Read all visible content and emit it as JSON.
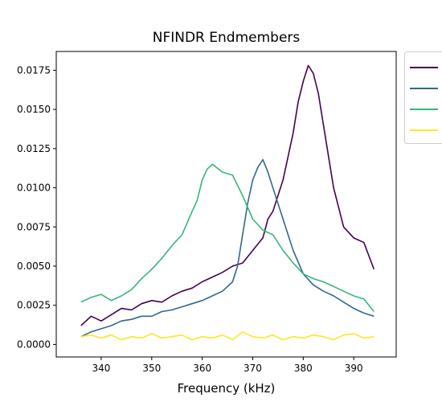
{
  "chart_data": {
    "type": "line",
    "title": "NFINDR Endmembers",
    "xlabel": "Frequency (kHz)",
    "ylabel": "",
    "xlim": [
      331.1,
      398.4
    ],
    "ylim": [
      -0.0008,
      0.0187
    ],
    "xticks": [
      340,
      350,
      360,
      370,
      380,
      390
    ],
    "yticks": [
      0.0,
      0.0025,
      0.005,
      0.0075,
      0.01,
      0.0125,
      0.015,
      0.0175
    ],
    "ytick_labels": [
      "0.0000",
      "0.0025",
      "0.0050",
      "0.0075",
      "0.0100",
      "0.0125",
      "0.0150",
      "0.0175"
    ],
    "grid": false,
    "legend": {
      "placement": "outside-right",
      "entries": 4
    },
    "series": [
      {
        "color": "#440154",
        "x": [
          336,
          338,
          340,
          342,
          344,
          346,
          348,
          350,
          352,
          354,
          356,
          358,
          360,
          362,
          364,
          366,
          368,
          370,
          372,
          373,
          374,
          376,
          378,
          379,
          380,
          381,
          382,
          383,
          384,
          386,
          388,
          390,
          392,
          394
        ],
        "y": [
          0.0012,
          0.0018,
          0.0015,
          0.0019,
          0.0023,
          0.0022,
          0.0026,
          0.0028,
          0.0027,
          0.0031,
          0.0034,
          0.0036,
          0.004,
          0.0043,
          0.0046,
          0.005,
          0.0052,
          0.006,
          0.0068,
          0.008,
          0.0085,
          0.0105,
          0.0135,
          0.0155,
          0.0168,
          0.0178,
          0.0173,
          0.016,
          0.014,
          0.01,
          0.0075,
          0.0068,
          0.0065,
          0.0048
        ]
      },
      {
        "color": "#31688e",
        "x": [
          336,
          338,
          340,
          342,
          344,
          346,
          348,
          350,
          352,
          354,
          356,
          358,
          360,
          362,
          364,
          366,
          367,
          368,
          369,
          370,
          371,
          372,
          373,
          374,
          376,
          378,
          380,
          382,
          384,
          386,
          388,
          390,
          392,
          394
        ],
        "y": [
          0.0005,
          0.0008,
          0.001,
          0.0012,
          0.0015,
          0.0016,
          0.0018,
          0.0018,
          0.0021,
          0.0022,
          0.0024,
          0.0026,
          0.0028,
          0.0031,
          0.0034,
          0.004,
          0.005,
          0.007,
          0.009,
          0.0105,
          0.0113,
          0.0118,
          0.011,
          0.01,
          0.008,
          0.006,
          0.0045,
          0.0038,
          0.0034,
          0.0031,
          0.0027,
          0.0023,
          0.002,
          0.0018
        ]
      },
      {
        "color": "#35b779",
        "x": [
          336,
          338,
          340,
          342,
          344,
          346,
          348,
          350,
          352,
          354,
          356,
          358,
          359,
          360,
          361,
          362,
          364,
          366,
          368,
          370,
          372,
          374,
          376,
          378,
          380,
          382,
          384,
          386,
          388,
          390,
          392,
          394
        ],
        "y": [
          0.0027,
          0.003,
          0.0032,
          0.0028,
          0.0031,
          0.0035,
          0.0042,
          0.0048,
          0.0055,
          0.0063,
          0.007,
          0.0085,
          0.0092,
          0.0105,
          0.0112,
          0.0115,
          0.011,
          0.0108,
          0.0095,
          0.008,
          0.0073,
          0.007,
          0.006,
          0.0052,
          0.0045,
          0.0042,
          0.004,
          0.0037,
          0.0034,
          0.0031,
          0.0029,
          0.0021
        ]
      },
      {
        "color": "#fde725",
        "x": [
          336,
          338,
          340,
          342,
          344,
          346,
          348,
          350,
          352,
          354,
          356,
          358,
          360,
          362,
          364,
          366,
          368,
          370,
          372,
          374,
          376,
          378,
          380,
          382,
          384,
          386,
          388,
          390,
          392,
          394
        ],
        "y": [
          0.0005,
          0.0006,
          0.0004,
          0.0006,
          0.0003,
          0.0005,
          0.0004,
          0.0007,
          0.0004,
          0.0005,
          0.0006,
          0.0003,
          0.0005,
          0.0004,
          0.0006,
          0.0003,
          0.0008,
          0.0005,
          0.0004,
          0.0006,
          0.0003,
          0.0005,
          0.0004,
          0.0006,
          0.0005,
          0.0003,
          0.0006,
          0.0007,
          0.0004,
          0.0005
        ]
      }
    ]
  }
}
